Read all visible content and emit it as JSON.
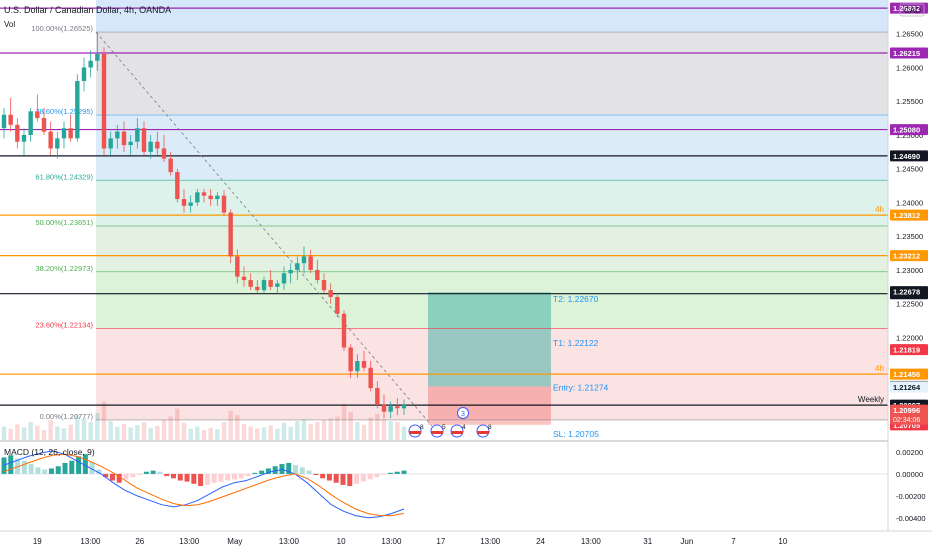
{
  "header": {
    "title": "U.S. Dollar / Canadian Dollar, 4h, OANDA",
    "vol_label": "Vol",
    "currency": "CAD"
  },
  "macd": {
    "label": "MACD (12, 26, close, 9)",
    "axis_labels": [
      "0.00200",
      "0.00000",
      "-0.00200",
      "-0.00400"
    ],
    "axis_values": [
      0.002,
      0.0,
      -0.002,
      -0.004
    ],
    "histogram": [
      0.0015,
      0.0017,
      0.0014,
      0.0012,
      0.0009,
      0.0006,
      0.0004,
      0.0005,
      0.0007,
      0.001,
      0.0012,
      0.0016,
      0.0018,
      0.0011,
      0.0004,
      -0.0003,
      -0.0006,
      -0.0008,
      -0.0005,
      -0.0003,
      -0.0001,
      0.0002,
      0.0003,
      0.0002,
      -0.0002,
      -0.0004,
      -0.0006,
      -0.0007,
      -0.0009,
      -0.0011,
      -0.001,
      -0.0008,
      -0.0007,
      -0.0006,
      -0.0005,
      -0.0004,
      -0.0002,
      0.0001,
      0.0003,
      0.0005,
      0.0007,
      0.0009,
      0.001,
      0.0008,
      0.0006,
      0.0003,
      -0.0001,
      -0.0004,
      -0.0006,
      -0.0008,
      -0.001,
      -0.0011,
      -0.0009,
      -0.0007,
      -0.0005,
      -0.0003,
      -0.0001,
      0.0001,
      0.0002,
      0.0003
    ],
    "macd_line": [
      0.0008,
      0.0012,
      0.0016,
      0.0019,
      0.0021,
      0.0018,
      0.0012,
      0.0006,
      0.0,
      -0.0008,
      -0.0015,
      -0.002,
      -0.0024,
      -0.0028,
      -0.003,
      -0.0028,
      -0.0024,
      -0.0018,
      -0.0012,
      -0.0008,
      -0.0006,
      -0.0002,
      0.0002,
      0.0004,
      0.0,
      -0.0008,
      -0.0018,
      -0.0028,
      -0.0034,
      -0.0038,
      -0.004,
      -0.0039,
      -0.0036,
      -0.0032
    ],
    "signal_line": [
      0.0002,
      0.0006,
      0.001,
      0.0014,
      0.0017,
      0.0018,
      0.0016,
      0.0012,
      0.0007,
      0.0001,
      -0.0006,
      -0.0013,
      -0.0018,
      -0.0023,
      -0.0027,
      -0.0029,
      -0.0028,
      -0.0025,
      -0.0021,
      -0.0017,
      -0.0013,
      -0.0009,
      -0.0005,
      -0.0002,
      0.0,
      -0.0004,
      -0.0011,
      -0.0019,
      -0.0026,
      -0.0032,
      -0.0036,
      -0.0038,
      -0.0038,
      -0.0036
    ]
  },
  "price_axis": {
    "labels": [
      "1.26500",
      "1.26000",
      "1.25500",
      "1.25000",
      "1.24500",
      "1.24000",
      "1.23500",
      "1.23000",
      "1.22500",
      "1.22000",
      "1.21500",
      "1.21000"
    ],
    "values": [
      1.265,
      1.26,
      1.255,
      1.25,
      1.245,
      1.24,
      1.235,
      1.23,
      1.225,
      1.22,
      1.215,
      1.21
    ],
    "range": [
      1.2048,
      1.27
    ]
  },
  "time_axis": {
    "labels": [
      "19",
      "13:00",
      "26",
      "13:00",
      "May",
      "13:00",
      "10",
      "13:00",
      "17",
      "13:00",
      "24",
      "13:00",
      "31",
      "Jun",
      "7",
      "10"
    ],
    "positions": [
      0.04,
      0.097,
      0.15,
      0.203,
      0.252,
      0.31,
      0.366,
      0.42,
      0.473,
      0.526,
      0.58,
      0.634,
      0.695,
      0.737,
      0.787,
      0.84
    ]
  },
  "fibonacci": {
    "levels": [
      {
        "label": "100.00%(1.26525)",
        "price": 1.26525,
        "color": "#787b86"
      },
      {
        "label": "78.60%(1.25295)",
        "price": 1.25295,
        "color": "#2196f3"
      },
      {
        "label": "61.80%(1.24329)",
        "price": 1.24329,
        "color": "#26a69a"
      },
      {
        "label": "50.00%(1.23651)",
        "price": 1.23651,
        "color": "#4caf50"
      },
      {
        "label": "38.20%(1.22973)",
        "price": 1.22973,
        "color": "#4caf50"
      },
      {
        "label": "23.60%(1.22134)",
        "price": 1.22134,
        "color": "#f23645"
      },
      {
        "label": "0.00%(1.20777)",
        "price": 1.20777,
        "color": "#787b86"
      }
    ],
    "zones": [
      {
        "from": 1.27,
        "to": 1.26525,
        "color": "#d6e7fb"
      },
      {
        "from": 1.26525,
        "to": 1.25295,
        "color": "#e3e3e6"
      },
      {
        "from": 1.25295,
        "to": 1.24329,
        "color": "#dcebf8"
      },
      {
        "from": 1.24329,
        "to": 1.23651,
        "color": "#ddf2ea"
      },
      {
        "from": 1.23651,
        "to": 1.22973,
        "color": "#e2f1e2"
      },
      {
        "from": 1.22973,
        "to": 1.22134,
        "color": "#dcf3d9"
      },
      {
        "from": 1.22134,
        "to": 1.20777,
        "color": "#fbe2e3"
      }
    ]
  },
  "horizontal_lines": [
    {
      "price": 1.2688,
      "color": "#9c27b0",
      "tag": "1.26882",
      "tag_bg": "#9c27b0"
    },
    {
      "price": 1.26215,
      "color": "#9c27b0",
      "tag": "1.26215",
      "tag_bg": "#9c27b0"
    },
    {
      "price": 1.2508,
      "color": "#9c27b0",
      "tag": "1.25080",
      "tag_bg": "#9c27b0"
    },
    {
      "price": 1.2469,
      "color": "#131722",
      "tag": "1.24690",
      "tag_bg": "#131722"
    },
    {
      "price": 1.23812,
      "color": "#ff9800",
      "tag": "1.23812",
      "tag_bg": "#ff9800"
    },
    {
      "price": 1.23212,
      "color": "#ff9800",
      "tag": "1.23212",
      "tag_bg": "#ff9800"
    },
    {
      "price": 1.22648,
      "color": "#131722",
      "tag": "1.22648",
      "tag_bg": "#131722"
    },
    {
      "price": 1.21456,
      "color": "#ff9800",
      "tag": "1.21456",
      "tag_bg": "#ff9800"
    },
    {
      "price": 1.20997,
      "color": "#131722",
      "tag": "1.20997",
      "tag_bg": "#131722"
    }
  ],
  "extra_tags": [
    {
      "price": 1.22678,
      "tag": "1.22678",
      "bg": "#131722"
    },
    {
      "price": 1.21819,
      "tag": "1.21819",
      "bg": "#f23645"
    },
    {
      "price": 1.21274,
      "tag": "1.21274",
      "bg": "#787b86"
    },
    {
      "price": 1.21264,
      "tag": "1.21264",
      "bg": "#e3f2fd",
      "fg": "#131722"
    },
    {
      "price": 1.20787,
      "tag": "1.20787",
      "bg": "#e3f2fd",
      "fg": "#131722"
    },
    {
      "price": 1.20705,
      "tag": "1.20705",
      "bg": "#f23645"
    }
  ],
  "current_price": {
    "tag": "1.20996",
    "countdown": "02:34:06",
    "price": 1.20996
  },
  "line_labels": [
    {
      "price": 1.23812,
      "text": "4h",
      "color": "#ff9800"
    },
    {
      "price": 1.21456,
      "text": "4h",
      "color": "#ff9800"
    },
    {
      "price": 1.20997,
      "text": "Weekly",
      "color": "#131722"
    }
  ],
  "position": {
    "target2_label": "T2: 1.22670",
    "target2": 1.2267,
    "target1_label": "T1: 1.22122",
    "target1": 1.22122,
    "entry_label": "Entry: 1.21274",
    "entry": 1.21274,
    "stop_label": "SL: 1.20705",
    "stop": 1.20705
  },
  "candles": [
    [
      1.251,
      1.254,
      1.2495,
      1.253
    ],
    [
      1.253,
      1.2555,
      1.2505,
      1.2515
    ],
    [
      1.2515,
      1.2525,
      1.248,
      1.249
    ],
    [
      1.249,
      1.251,
      1.247,
      1.25
    ],
    [
      1.25,
      1.254,
      1.249,
      1.2535
    ],
    [
      1.2535,
      1.256,
      1.252,
      1.2525
    ],
    [
      1.2525,
      1.254,
      1.25,
      1.2505
    ],
    [
      1.2505,
      1.252,
      1.247,
      1.248
    ],
    [
      1.248,
      1.2505,
      1.2465,
      1.2495
    ],
    [
      1.2495,
      1.252,
      1.248,
      1.251
    ],
    [
      1.251,
      1.253,
      1.249,
      1.2495
    ],
    [
      1.2495,
      1.259,
      1.249,
      1.258
    ],
    [
      1.258,
      1.2615,
      1.2565,
      1.26
    ],
    [
      1.26,
      1.2625,
      1.2585,
      1.261
    ],
    [
      1.261,
      1.2652,
      1.2595,
      1.262
    ],
    [
      1.262,
      1.263,
      1.247,
      1.248
    ],
    [
      1.248,
      1.2505,
      1.247,
      1.2495
    ],
    [
      1.2495,
      1.2515,
      1.248,
      1.2505
    ],
    [
      1.2505,
      1.252,
      1.2475,
      1.2485
    ],
    [
      1.2485,
      1.25,
      1.247,
      1.249
    ],
    [
      1.249,
      1.2525,
      1.248,
      1.251
    ],
    [
      1.251,
      1.252,
      1.247,
      1.2475
    ],
    [
      1.2475,
      1.25,
      1.2465,
      1.249
    ],
    [
      1.249,
      1.2505,
      1.247,
      1.248
    ],
    [
      1.248,
      1.25,
      1.246,
      1.2465
    ],
    [
      1.2465,
      1.2475,
      1.244,
      1.2445
    ],
    [
      1.2445,
      1.245,
      1.24,
      1.2405
    ],
    [
      1.2405,
      1.242,
      1.2385,
      1.2395
    ],
    [
      1.2395,
      1.241,
      1.2385,
      1.24
    ],
    [
      1.24,
      1.242,
      1.2395,
      1.2415
    ],
    [
      1.2415,
      1.242,
      1.24,
      1.241
    ],
    [
      1.241,
      1.242,
      1.2395,
      1.2405
    ],
    [
      1.2405,
      1.2415,
      1.2395,
      1.241
    ],
    [
      1.241,
      1.2418,
      1.238,
      1.2385
    ],
    [
      1.2385,
      1.239,
      1.231,
      1.232
    ],
    [
      1.232,
      1.233,
      1.228,
      1.229
    ],
    [
      1.229,
      1.2305,
      1.2275,
      1.2285
    ],
    [
      1.2285,
      1.2295,
      1.227,
      1.2275
    ],
    [
      1.2275,
      1.2285,
      1.2265,
      1.227
    ],
    [
      1.227,
      1.229,
      1.2265,
      1.2285
    ],
    [
      1.2285,
      1.23,
      1.227,
      1.2275
    ],
    [
      1.2275,
      1.2285,
      1.2265,
      1.228
    ],
    [
      1.228,
      1.2305,
      1.227,
      1.2295
    ],
    [
      1.2295,
      1.231,
      1.228,
      1.23
    ],
    [
      1.23,
      1.232,
      1.2285,
      1.231
    ],
    [
      1.231,
      1.2335,
      1.2295,
      1.232
    ],
    [
      1.232,
      1.233,
      1.2295,
      1.23
    ],
    [
      1.23,
      1.2315,
      1.228,
      1.2285
    ],
    [
      1.2285,
      1.2295,
      1.2265,
      1.227
    ],
    [
      1.227,
      1.228,
      1.225,
      1.226
    ],
    [
      1.226,
      1.2265,
      1.223,
      1.2235
    ],
    [
      1.2235,
      1.224,
      1.218,
      1.2185
    ],
    [
      1.2185,
      1.219,
      1.214,
      1.215
    ],
    [
      1.215,
      1.2175,
      1.214,
      1.2165
    ],
    [
      1.2165,
      1.218,
      1.215,
      1.2155
    ],
    [
      1.2155,
      1.2165,
      1.212,
      1.2125
    ],
    [
      1.2125,
      1.2135,
      1.2095,
      1.21
    ],
    [
      1.21,
      1.2115,
      1.208,
      1.209
    ],
    [
      1.209,
      1.2105,
      1.208,
      1.2098
    ],
    [
      1.2098,
      1.211,
      1.2085,
      1.2095
    ],
    [
      1.2095,
      1.2108,
      1.2085,
      1.21
    ]
  ],
  "volumes": [
    0.3,
    0.25,
    0.35,
    0.28,
    0.4,
    0.32,
    0.22,
    0.45,
    0.3,
    0.26,
    0.34,
    0.55,
    0.48,
    0.4,
    0.6,
    0.85,
    0.42,
    0.3,
    0.36,
    0.28,
    0.33,
    0.4,
    0.27,
    0.31,
    0.45,
    0.52,
    0.7,
    0.38,
    0.25,
    0.3,
    0.22,
    0.27,
    0.24,
    0.4,
    0.65,
    0.55,
    0.35,
    0.3,
    0.26,
    0.28,
    0.32,
    0.25,
    0.38,
    0.3,
    0.42,
    0.46,
    0.36,
    0.4,
    0.44,
    0.48,
    0.52,
    0.8,
    0.62,
    0.4,
    0.34,
    0.5,
    0.58,
    0.46,
    0.42,
    0.4,
    0.3
  ],
  "events": [
    {
      "icon": "us-flag-icon",
      "label": "8"
    },
    {
      "icon": "us-flag-icon",
      "label": "5"
    },
    {
      "icon": "us-flag-icon",
      "label": "4"
    },
    {
      "icon": "us-flag-icon",
      "label": "8"
    }
  ],
  "event_badge": "3",
  "colors": {
    "up": "#26a69a",
    "down": "#ef5350",
    "macd_line": "#2962ff",
    "signal_line": "#ff6d00",
    "hist_up": "#26a69a",
    "hist_down": "#ef5350",
    "grid": "#e0e3eb",
    "axis_text": "#131722"
  }
}
